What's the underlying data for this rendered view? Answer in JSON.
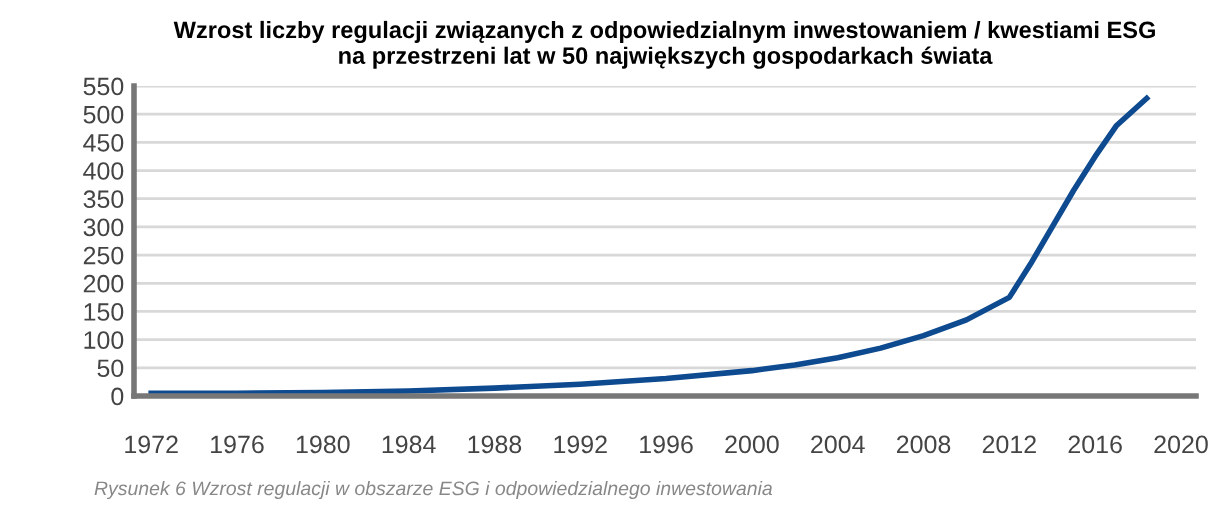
{
  "chart_data": {
    "type": "line",
    "title": "Wzrost liczby regulacji związanych z odpowiedzialnym inwestowaniem / kwestiami ESG\nna przestrzeni lat w 50 największych gospodarkach świata",
    "x": [
      1972,
      1976,
      1980,
      1984,
      1988,
      1992,
      1996,
      2000,
      2002,
      2004,
      2006,
      2008,
      2010,
      2012,
      2013,
      2014,
      2015,
      2016,
      2017,
      2018.4
    ],
    "series": [
      {
        "color": "#0d4a8f",
        "values": [
          5,
          5,
          6,
          9,
          14,
          21,
          31,
          45,
          55,
          68,
          85,
          107,
          135,
          175,
          235,
          300,
          365,
          425,
          480,
          528
        ]
      }
    ],
    "xlim": [
      1971.2,
      2020.7
    ],
    "xticks": [
      1972,
      1976,
      1980,
      1984,
      1988,
      1992,
      1996,
      2000,
      2004,
      2008,
      2012,
      2016,
      2020
    ],
    "ylim": [
      0,
      550
    ],
    "yticks": [
      0,
      50,
      100,
      150,
      200,
      250,
      300,
      350,
      400,
      450,
      500,
      550
    ],
    "grid": "y",
    "marker": "none",
    "line_style": "solid",
    "annotations": [
      "Rysunek 6 Wzrost regulacji w obszarze ESG i odpowiedzialnego inwestowania"
    ]
  }
}
